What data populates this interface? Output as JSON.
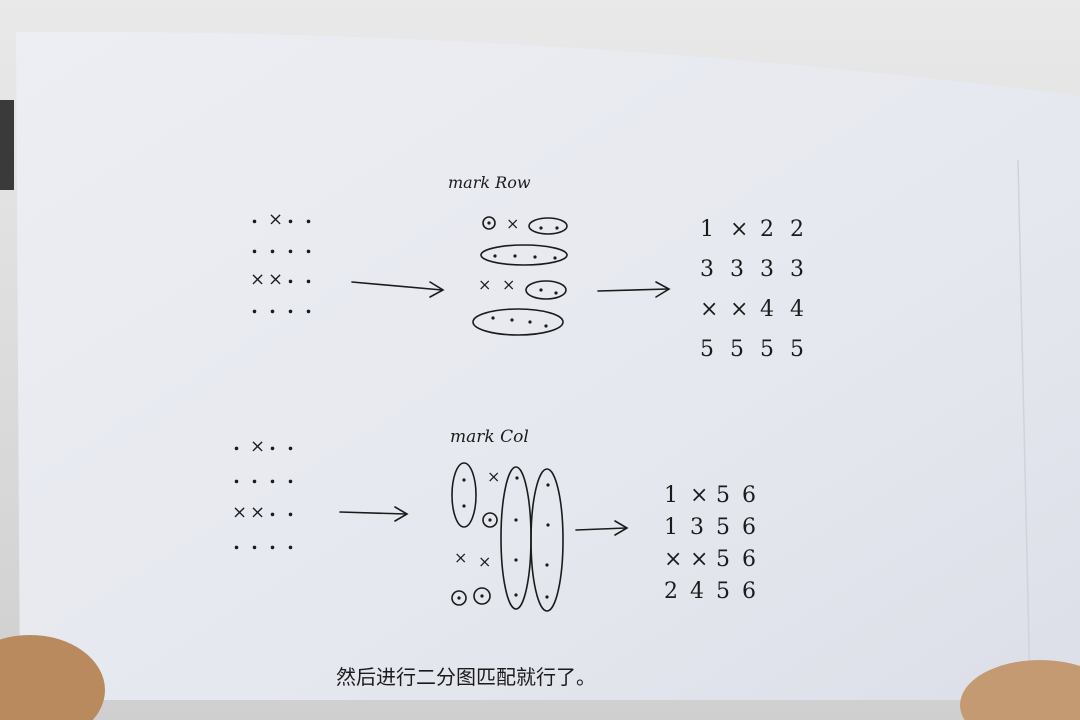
{
  "top": {
    "label": "mark Row",
    "input_grid": [
      [
        ".",
        "X",
        ".",
        "."
      ],
      [
        ".",
        ".",
        ".",
        "."
      ],
      [
        "X",
        "X",
        ".",
        "."
      ],
      [
        ".",
        ".",
        ".",
        "."
      ]
    ],
    "middle_grid": [
      [
        "⊙",
        "X",
        "·",
        "·"
      ],
      [
        "·",
        "·",
        "·",
        "·"
      ],
      [
        "X",
        "X",
        "·",
        "·"
      ],
      [
        "·",
        "·",
        "·",
        "·"
      ]
    ],
    "result_grid": [
      [
        "1",
        "X",
        "2",
        "2"
      ],
      [
        "3",
        "3",
        "3",
        "3"
      ],
      [
        "X",
        "X",
        "4",
        "4"
      ],
      [
        "5",
        "5",
        "5",
        "5"
      ]
    ]
  },
  "bottom": {
    "label": "mark Col",
    "input_grid": [
      [
        ".",
        "X",
        ".",
        "."
      ],
      [
        ".",
        ".",
        ".",
        "."
      ],
      [
        "X",
        "X",
        ".",
        "."
      ],
      [
        ".",
        ".",
        ".",
        "."
      ]
    ],
    "middle_grid": [
      [
        "·",
        "X",
        "·",
        "·"
      ],
      [
        "·",
        "⊙",
        "·",
        "·"
      ],
      [
        "X",
        "X",
        "·",
        "·"
      ],
      [
        "⊙",
        "⊙",
        "·",
        "·"
      ]
    ],
    "result_grid": [
      [
        "1",
        "X",
        "5",
        "6"
      ],
      [
        "1",
        "3",
        "5",
        "6"
      ],
      [
        "X",
        "X",
        "5",
        "6"
      ],
      [
        "2",
        "4",
        "5",
        "6"
      ]
    ]
  },
  "caption": "然后进行二分图匹配就行了。",
  "colors": {
    "paper": "#e9ebf1",
    "ink": "#1b1b1b",
    "wall": "#d2d2d2",
    "hand": "#b98a5e"
  }
}
